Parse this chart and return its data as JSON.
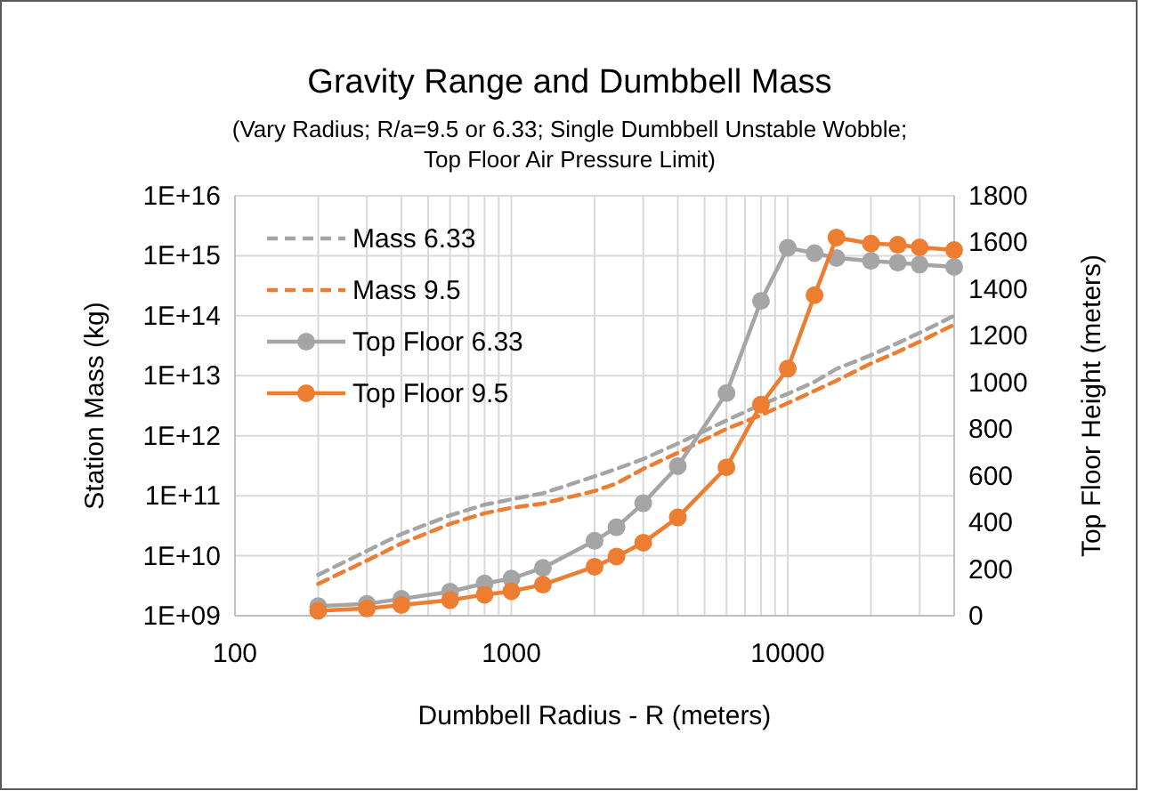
{
  "chart_data": {
    "type": "line",
    "title": "Gravity Range and Dumbbell Mass",
    "subtitle": "(Vary Radius; R/a=9.5 or 6.33; Single Dumbbell Unstable Wobble;\nTop Floor Air Pressure Limit)",
    "xlabel": "Dumbbell Radius - R (meters)",
    "ylabel": "Station Mass (kg)",
    "y2label": "Top Floor Height (meters)",
    "x": [
      200,
      300,
      400,
      600,
      800,
      1000,
      1300,
      2000,
      2400,
      3000,
      4000,
      6000,
      8000,
      10000,
      12500,
      15000,
      20000,
      25000,
      30000,
      40000
    ],
    "series": [
      {
        "name": "Mass 6.33",
        "color": "#a5a5a5",
        "line_style": "dashed",
        "marker": "none",
        "values": [
          4800000000.0,
          12000000000.0,
          23000000000.0,
          47000000000.0,
          71000000000.0,
          87000000000.0,
          110000000000.0,
          210000000000.0,
          280000000000.0,
          410000000000.0,
          740000000000.0,
          1800000000000.0,
          3300000000000.0,
          5000000000000.0,
          7900000000000.0,
          13000000000000.0,
          22000000000000.0,
          35000000000000.0,
          52000000000000.0,
          100000000000000.0
        ]
      },
      {
        "name": "Mass 9.5",
        "color": "#ed7d31",
        "line_style": "dashed",
        "marker": "none",
        "values": [
          3400000000.0,
          8300000000.0,
          16000000000.0,
          34000000000.0,
          51000000000.0,
          63000000000.0,
          74000000000.0,
          120000000000.0,
          160000000000.0,
          280000000000.0,
          520000000000.0,
          1300000000000.0,
          2200000000000.0,
          3500000000000.0,
          5600000000000.0,
          8300000000000.0,
          16000000000000.0,
          25000000000000.0,
          37000000000000.0,
          71000000000000.0
        ]
      },
      {
        "name": "Top Floor 6.33",
        "color": "#a5a5a5",
        "line_style": "solid",
        "marker": "circle",
        "axis": "y2",
        "values": [
          41,
          51,
          72,
          103,
          138,
          159,
          205,
          321,
          379,
          482,
          641,
          954,
          1349,
          1577,
          1554,
          1533,
          1521,
          1513,
          1505,
          1495
        ]
      },
      {
        "name": "Top Floor 9.5",
        "color": "#ed7d31",
        "line_style": "solid",
        "marker": "circle",
        "axis": "y2",
        "values": [
          21,
          31,
          46,
          67,
          90,
          105,
          133,
          210,
          254,
          313,
          421,
          636,
          905,
          1059,
          1374,
          1621,
          1595,
          1590,
          1579,
          1567
        ]
      }
    ],
    "log": "xy",
    "xlim": [
      100,
      40000
    ],
    "xticks": [
      100,
      {
        "value": 200,
        "label": null
      },
      {
        "value": 300,
        "label": null
      },
      {
        "value": 400,
        "label": null
      },
      {
        "value": 500,
        "label": null
      },
      {
        "value": 600,
        "label": null
      },
      {
        "value": 700,
        "label": null
      },
      {
        "value": 800,
        "label": null
      },
      {
        "value": 900,
        "label": null
      },
      1000,
      {
        "value": 2000,
        "label": null
      },
      {
        "value": 3000,
        "label": null
      },
      {
        "value": 4000,
        "label": null
      },
      {
        "value": 5000,
        "label": null
      },
      {
        "value": 6000,
        "label": null
      },
      {
        "value": 7000,
        "label": null
      },
      {
        "value": 8000,
        "label": null
      },
      {
        "value": 9000,
        "label": null
      },
      10000,
      {
        "value": 20000,
        "label": null
      },
      {
        "value": 30000,
        "label": null
      },
      {
        "value": 40000,
        "label": null
      }
    ],
    "ylim": [
      1000000000.0,
      1e+16
    ],
    "yticks": [
      {
        "value": 1000000000.0,
        "label": "1E+09"
      },
      {
        "value": 10000000000.0,
        "label": "1E+10"
      },
      {
        "value": 100000000000.0,
        "label": "1E+11"
      },
      {
        "value": 1000000000000.0,
        "label": "1E+12"
      },
      {
        "value": 10000000000000.0,
        "label": "1E+13"
      },
      {
        "value": 100000000000000.0,
        "label": "1E+14"
      },
      {
        "value": 1000000000000000.0,
        "label": "1E+15"
      },
      {
        "value": 1e+16,
        "label": "1E+16"
      }
    ],
    "y2lim": [
      0,
      1800
    ],
    "y2ticks": [
      0,
      200,
      400,
      600,
      800,
      1000,
      1200,
      1400,
      1600,
      1800
    ],
    "grid": true,
    "legend": "top left"
  }
}
